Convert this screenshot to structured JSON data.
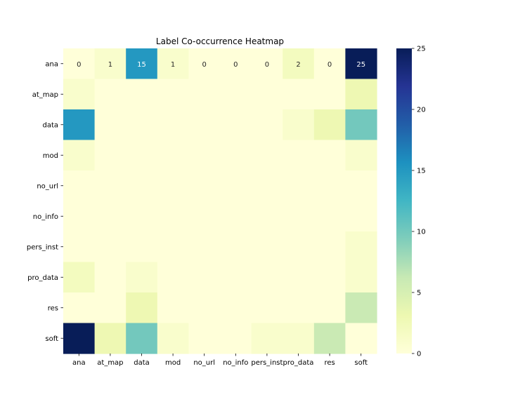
{
  "chart_data": {
    "type": "heatmap",
    "title": "Label Co-occurrence Heatmap",
    "xlabel": "",
    "ylabel": "",
    "x_categories": [
      "ana",
      "at_map",
      "data",
      "mod",
      "no_url",
      "no_info",
      "pers_inst",
      "pro_data",
      "res",
      "soft"
    ],
    "y_categories": [
      "ana",
      "at_map",
      "data",
      "mod",
      "no_url",
      "no_info",
      "pers_inst",
      "pro_data",
      "res",
      "soft"
    ],
    "values": [
      [
        0,
        1,
        15,
        1,
        0,
        0,
        0,
        2,
        0,
        25
      ],
      [
        1,
        0,
        0,
        0,
        0,
        0,
        0,
        0,
        0,
        3
      ],
      [
        15,
        0,
        0,
        0,
        0,
        0,
        0,
        1,
        3,
        10
      ],
      [
        1,
        0,
        0,
        0,
        0,
        0,
        0,
        0,
        0,
        1
      ],
      [
        0,
        0,
        0,
        0,
        0,
        0,
        0,
        0,
        0,
        0
      ],
      [
        0,
        0,
        0,
        0,
        0,
        0,
        0,
        0,
        0,
        0
      ],
      [
        0,
        0,
        0,
        0,
        0,
        0,
        0,
        0,
        0,
        1
      ],
      [
        2,
        0,
        1,
        0,
        0,
        0,
        0,
        0,
        0,
        1
      ],
      [
        0,
        0,
        3,
        0,
        0,
        0,
        0,
        0,
        0,
        6
      ],
      [
        25,
        3,
        10,
        1,
        0,
        0,
        1,
        1,
        6,
        0
      ]
    ],
    "annotated_rows": [
      "ana"
    ],
    "colormap": "YlGnBu",
    "colorbar": {
      "min": 0,
      "max": 25,
      "ticks": [
        "0",
        "5",
        "10",
        "15",
        "20",
        "25"
      ]
    },
    "grid": false
  }
}
